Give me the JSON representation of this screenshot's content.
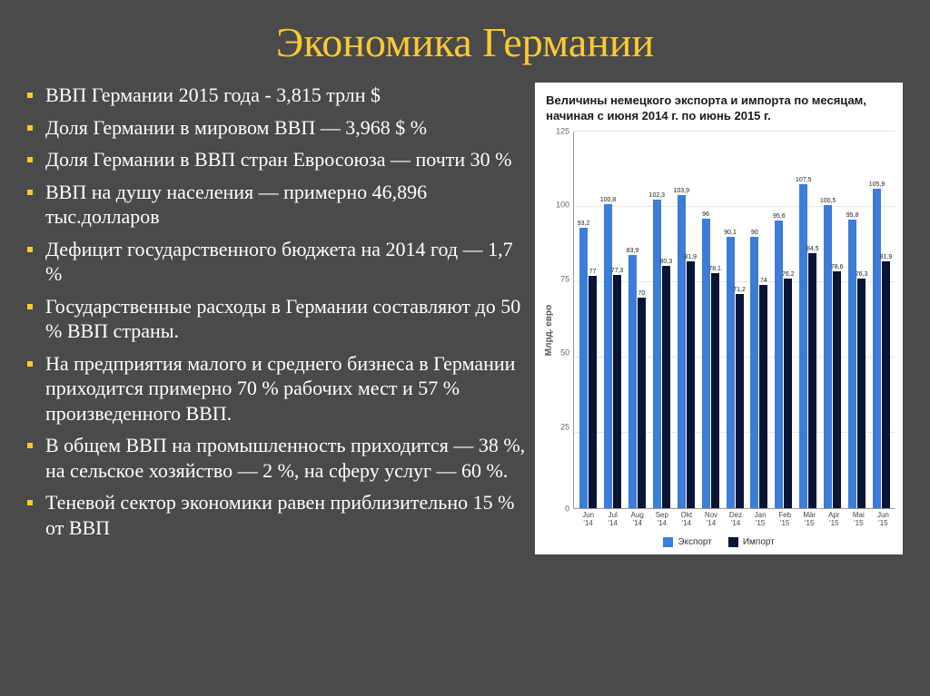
{
  "title": "Экономика Германии",
  "bullets": [
    "ВВП Германии 2015 года - 3,815 трлн $",
    "Доля Германии в мировом ВВП — 3,968 $ %",
    "Доля Германии в ВВП стран Евросоюза — почти 30 %",
    "ВВП на душу населения — примерно 46,896 тыс.долларов",
    "Дефицит государственного бюджета на 2014 год — 1,7 %",
    "Государственные расходы в Германии составляют до 50 % ВВП страны.",
    "На предприятия малого и среднего бизнеса в Германии приходится примерно 70 % рабочих мест и 57 % произведенного ВВП.",
    "В общем ВВП на промышленность приходится — 38 %, на сельское хозяйство — 2 %, на сферу услуг — 60 %.",
    "Теневой сектор экономики равен приблизительно 15 % от ВВП"
  ],
  "chart": {
    "type": "bar",
    "title": "Величины немецкого экспорта и импорта по месяцам, начиная с июня 2014 г. по июнь 2015 г.",
    "y_label": "Млрд. евро",
    "ylim": [
      0,
      125
    ],
    "ytick_step": 25,
    "yticks": [
      "125",
      "100",
      "75",
      "50",
      "25",
      "0"
    ],
    "background_color": "#ffffff",
    "grid_color": "#e8e8e8",
    "export_color": "#3b7dd8",
    "import_color": "#0a1435",
    "categories": [
      "Jun '14",
      "Jul '14",
      "Aug '14",
      "Sep '14",
      "Okt '14",
      "Nov '14",
      "Dez '14",
      "Jan '15",
      "Feb '15",
      "Mär '15",
      "Apr '15",
      "Mai '15",
      "Jun '15"
    ],
    "export_values": [
      93.2,
      100.8,
      83.9,
      102.3,
      103.9,
      96,
      90.1,
      90,
      95.6,
      107.5,
      100.5,
      95.8,
      105.9
    ],
    "import_values": [
      77,
      77.3,
      70,
      80.3,
      81.9,
      78.1,
      71.2,
      74,
      76.2,
      84.5,
      78.6,
      76.3,
      81.9
    ],
    "export_labels": [
      "93,2",
      "100,8",
      "83,9",
      "102,3",
      "103,9",
      "96",
      "90,1",
      "90",
      "95,6",
      "107,5",
      "100,5",
      "95,8",
      "105,9"
    ],
    "import_labels": [
      "77",
      "77,3",
      "70",
      "80,3",
      "81,9",
      "78,1",
      "71,2",
      "74",
      "76,2",
      "84,5",
      "78,6",
      "76,3",
      "81,9"
    ],
    "legend": {
      "export": "Экспорт",
      "import": "Импорт"
    }
  },
  "colors": {
    "slide_bg": "#4a4a4a",
    "title_color": "#ffc832",
    "text_color": "#ffffff",
    "bullet_color": "#ffc832"
  }
}
